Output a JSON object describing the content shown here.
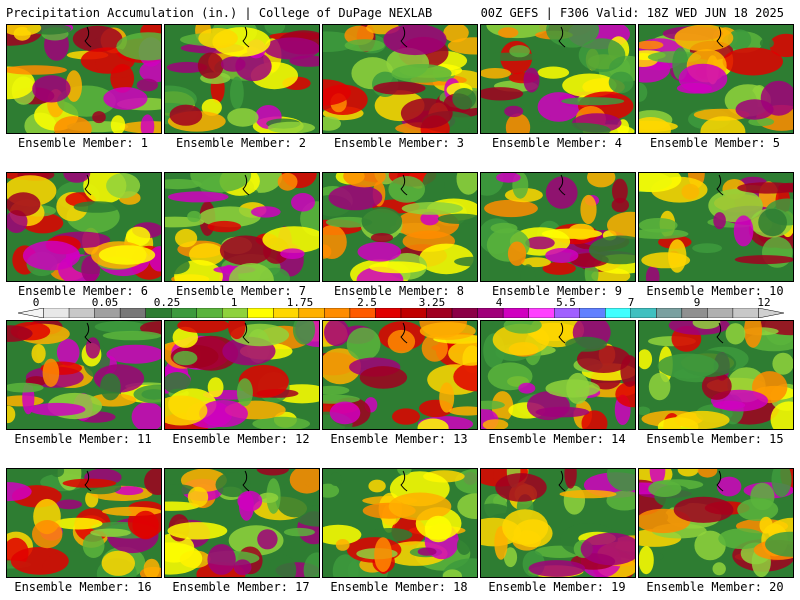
{
  "header": {
    "left_title": "Precipitation Accumulation (in.) | College of DuPage NEXLAB",
    "right_title": "00Z GEFS | F306 Valid: 18Z WED JUN 18 2025"
  },
  "panels": [
    {
      "label": "Ensemble Member: 1"
    },
    {
      "label": "Ensemble Member: 2"
    },
    {
      "label": "Ensemble Member: 3"
    },
    {
      "label": "Ensemble Member: 4"
    },
    {
      "label": "Ensemble Member: 5"
    },
    {
      "label": "Ensemble Member: 6"
    },
    {
      "label": "Ensemble Member: 7"
    },
    {
      "label": "Ensemble Member: 8"
    },
    {
      "label": "Ensemble Member: 9"
    },
    {
      "label": "Ensemble Member: 10"
    },
    {
      "label": "Ensemble Member: 11"
    },
    {
      "label": "Ensemble Member: 12"
    },
    {
      "label": "Ensemble Member: 13"
    },
    {
      "label": "Ensemble Member: 14"
    },
    {
      "label": "Ensemble Member: 15"
    },
    {
      "label": "Ensemble Member: 16"
    },
    {
      "label": "Ensemble Member: 17"
    },
    {
      "label": "Ensemble Member: 18"
    },
    {
      "label": "Ensemble Member: 19"
    },
    {
      "label": "Ensemble Member: 20"
    }
  ],
  "legend": {
    "tick_labels": [
      "0",
      "0.05",
      "0.25",
      "1",
      "1.75",
      "2.5",
      "3.25",
      "4",
      "5.5",
      "7",
      "9",
      "12"
    ],
    "colors": [
      "#e8e8e8",
      "#c8c8c8",
      "#a0a0a0",
      "#787878",
      "#2e7d32",
      "#3d9a3d",
      "#5ab43c",
      "#8fd23c",
      "#ffff00",
      "#ffd700",
      "#ffb000",
      "#ff8c00",
      "#ff5a00",
      "#e00000",
      "#c00000",
      "#a00020",
      "#8b0046",
      "#a0007a",
      "#d000c0",
      "#ff40ff",
      "#a060ff",
      "#6080ff",
      "#40ffff",
      "#40c0c0",
      "#7aa0a0",
      "#909090",
      "#b0b0b0",
      "#c8c8c8"
    ]
  }
}
